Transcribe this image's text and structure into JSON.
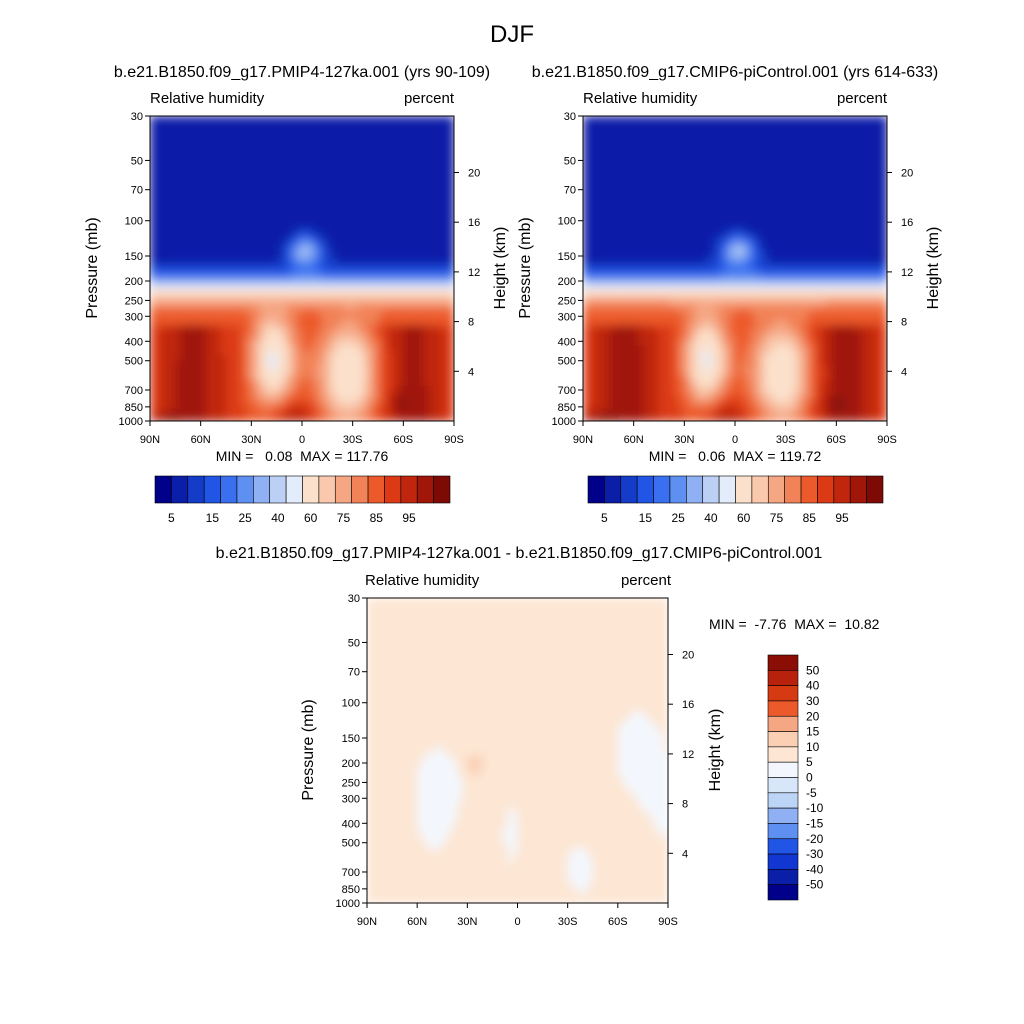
{
  "figure_title": "DJF",
  "palettes": {
    "rh": [
      "#00008b",
      "#0a1ea8",
      "#143cc8",
      "#2155e6",
      "#3a70f0",
      "#5e90f2",
      "#8fb0f3",
      "#bcd0f5",
      "#e2ecfb",
      "#fbe1cc",
      "#f9c8ad",
      "#f5a683",
      "#f28257",
      "#ec5a2c",
      "#dc3a14",
      "#c0260d",
      "#a01609",
      "#7d0a05"
    ],
    "diff": [
      "#00008b",
      "#0a1ea8",
      "#1236d2",
      "#2155e6",
      "#3a70f0",
      "#5e90f2",
      "#8fb0f3",
      "#bcd4f6",
      "#d8e6fa",
      "#f3f7fd",
      "#fde6d3",
      "#fbcfb3",
      "#f5a683",
      "#f28257",
      "#ec5a2c",
      "#d63a12",
      "#b8220c",
      "#8b0e05"
    ]
  },
  "chart_data": [
    {
      "type": "heatmap",
      "variant": "rh",
      "title": "b.e21.B1850.f09_g17.PMIP4-127ka.001 (yrs 90-109)",
      "left_string": "Relative humidity",
      "right_string": "percent",
      "xlabel": "",
      "ylabel": "Pressure (mb)",
      "y2label": "Height (km)",
      "x_tick_labels": [
        "90N",
        "60N",
        "30N",
        "0",
        "30S",
        "60S",
        "90S"
      ],
      "x_values": [
        90,
        60,
        30,
        0,
        -30,
        -60,
        -90
      ],
      "xlim": [
        90,
        -90
      ],
      "yscale": "log",
      "ylim": [
        1000,
        30
      ],
      "y_tick_values": [
        30,
        50,
        70,
        100,
        150,
        200,
        250,
        300,
        400,
        500,
        700,
        850,
        1000
      ],
      "y_tick_labels": [
        "30",
        "50",
        "70",
        "100",
        "150",
        "200",
        "250",
        "300",
        "400",
        "500",
        "700",
        "850",
        "1000"
      ],
      "height_ticks_km": [
        4,
        8,
        12,
        16,
        20
      ],
      "height_tick_labels": [
        "4",
        "8",
        "12",
        "16",
        "20"
      ],
      "stats": {
        "min": 0.08,
        "max": 117.76
      },
      "stats_text": "MIN =   0.08  MAX = 117.76",
      "colorbar": {
        "orientation": "horizontal",
        "levels": [
          5,
          10,
          15,
          20,
          25,
          30,
          35,
          40,
          50,
          60,
          65,
          70,
          75,
          80,
          85,
          90,
          95
        ],
        "labels": [
          "5",
          "15",
          "25",
          "40",
          "60",
          "75",
          "85",
          "95"
        ]
      }
    },
    {
      "type": "heatmap",
      "variant": "rh",
      "title": "b.e21.B1850.f09_g17.CMIP6-piControl.001 (yrs 614-633)",
      "left_string": "Relative humidity",
      "right_string": "percent",
      "xlabel": "",
      "ylabel": "Pressure (mb)",
      "y2label": "Height (km)",
      "x_tick_labels": [
        "90N",
        "60N",
        "30N",
        "0",
        "30S",
        "60S",
        "90S"
      ],
      "x_values": [
        90,
        60,
        30,
        0,
        -30,
        -60,
        -90
      ],
      "xlim": [
        90,
        -90
      ],
      "yscale": "log",
      "ylim": [
        1000,
        30
      ],
      "y_tick_values": [
        30,
        50,
        70,
        100,
        150,
        200,
        250,
        300,
        400,
        500,
        700,
        850,
        1000
      ],
      "y_tick_labels": [
        "30",
        "50",
        "70",
        "100",
        "150",
        "200",
        "250",
        "300",
        "400",
        "500",
        "700",
        "850",
        "1000"
      ],
      "height_ticks_km": [
        4,
        8,
        12,
        16,
        20
      ],
      "height_tick_labels": [
        "4",
        "8",
        "12",
        "16",
        "20"
      ],
      "stats": {
        "min": 0.06,
        "max": 119.72
      },
      "stats_text": "MIN =   0.06  MAX = 119.72",
      "colorbar": {
        "orientation": "horizontal",
        "levels": [
          5,
          10,
          15,
          20,
          25,
          30,
          35,
          40,
          50,
          60,
          65,
          70,
          75,
          80,
          85,
          90,
          95
        ],
        "labels": [
          "5",
          "15",
          "25",
          "40",
          "60",
          "75",
          "85",
          "95"
        ]
      }
    },
    {
      "type": "heatmap",
      "variant": "diff",
      "title": "b.e21.B1850.f09_g17.PMIP4-127ka.001 - b.e21.B1850.f09_g17.CMIP6-piControl.001",
      "left_string": "Relative humidity",
      "right_string": "percent",
      "xlabel": "",
      "ylabel": "Pressure (mb)",
      "y2label": "Height (km)",
      "x_tick_labels": [
        "90N",
        "60N",
        "30N",
        "0",
        "30S",
        "60S",
        "90S"
      ],
      "x_values": [
        90,
        60,
        30,
        0,
        -30,
        -60,
        -90
      ],
      "xlim": [
        90,
        -90
      ],
      "yscale": "log",
      "ylim": [
        1000,
        30
      ],
      "y_tick_values": [
        30,
        50,
        70,
        100,
        150,
        200,
        250,
        300,
        400,
        500,
        700,
        850,
        1000
      ],
      "y_tick_labels": [
        "30",
        "50",
        "70",
        "100",
        "150",
        "200",
        "250",
        "300",
        "400",
        "500",
        "700",
        "850",
        "1000"
      ],
      "height_ticks_km": [
        4,
        8,
        12,
        16,
        20
      ],
      "height_tick_labels": [
        "4",
        "8",
        "12",
        "16",
        "20"
      ],
      "stats": {
        "min": -7.76,
        "max": 10.82
      },
      "stats_text": "MIN =  -7.76  MAX =  10.82",
      "colorbar": {
        "orientation": "vertical",
        "levels": [
          -50,
          -40,
          -30,
          -20,
          -15,
          -10,
          -5,
          0,
          5,
          10,
          15,
          20,
          30,
          40,
          50
        ],
        "labels": [
          "50",
          "40",
          "30",
          "20",
          "15",
          "10",
          "5",
          "0",
          "-5",
          "-10",
          "-15",
          "-20",
          "-30",
          "-40",
          "-50"
        ]
      }
    }
  ]
}
